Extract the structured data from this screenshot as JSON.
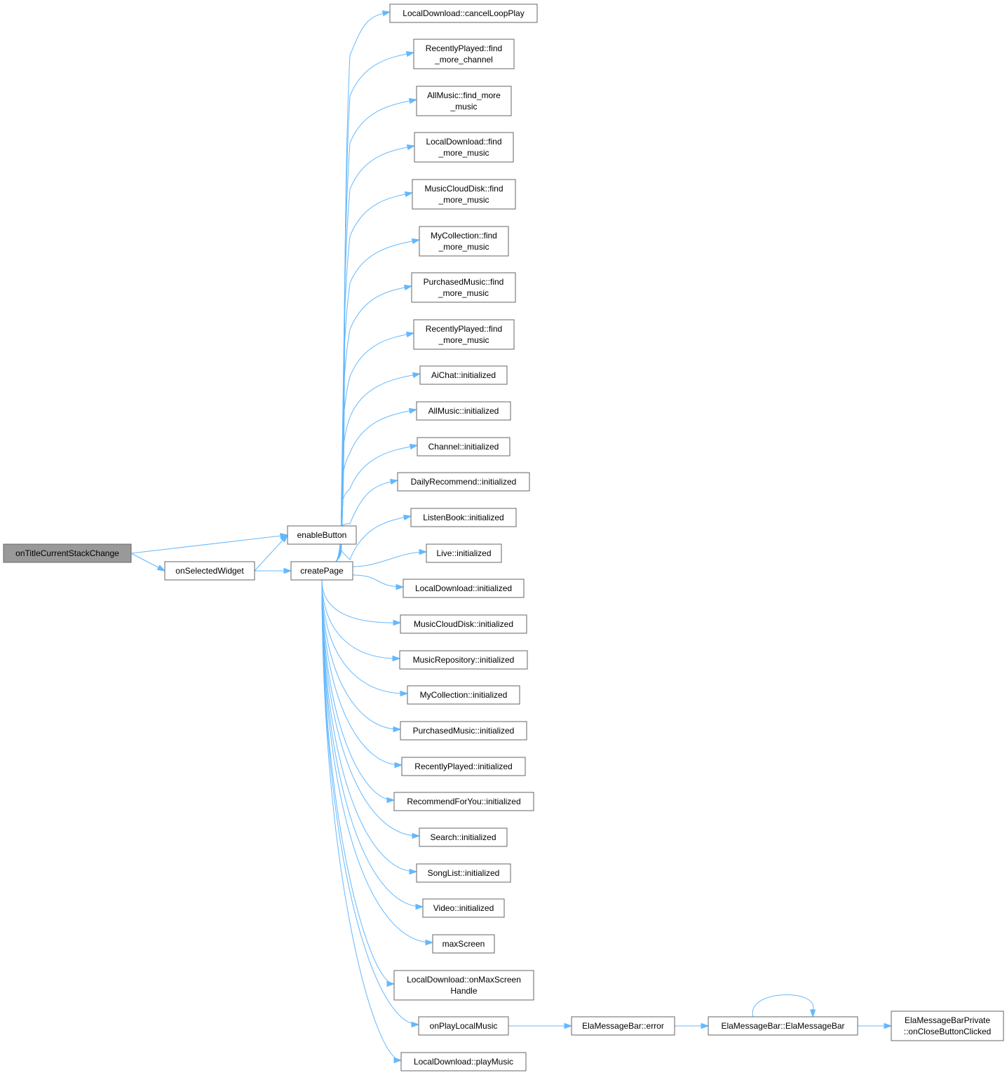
{
  "graph": {
    "nodes": [
      {
        "id": "onTitleCurrentStackChange",
        "lines": [
          "onTitleCurrentStackChange"
        ],
        "root": true
      },
      {
        "id": "enableButton",
        "lines": [
          "enableButton"
        ]
      },
      {
        "id": "onSelectedWidget",
        "lines": [
          "onSelectedWidget"
        ]
      },
      {
        "id": "createPage",
        "lines": [
          "createPage"
        ]
      },
      {
        "id": "LD_cancelLoopPlay",
        "lines": [
          "LocalDownload::cancelLoopPlay"
        ]
      },
      {
        "id": "RP_find_more_channel",
        "lines": [
          "RecentlyPlayed::find",
          "_more_channel"
        ]
      },
      {
        "id": "AM_find_more_music",
        "lines": [
          "AllMusic::find_more",
          "_music"
        ]
      },
      {
        "id": "LD_find_more_music",
        "lines": [
          "LocalDownload::find",
          "_more_music"
        ]
      },
      {
        "id": "MCD_find_more_music",
        "lines": [
          "MusicCloudDisk::find",
          "_more_music"
        ]
      },
      {
        "id": "MC_find_more_music",
        "lines": [
          "MyCollection::find",
          "_more_music"
        ]
      },
      {
        "id": "PM_find_more_music",
        "lines": [
          "PurchasedMusic::find",
          "_more_music"
        ]
      },
      {
        "id": "RP_find_more_music",
        "lines": [
          "RecentlyPlayed::find",
          "_more_music"
        ]
      },
      {
        "id": "AiChat_init",
        "lines": [
          "AiChat::initialized"
        ]
      },
      {
        "id": "AllMusic_init",
        "lines": [
          "AllMusic::initialized"
        ]
      },
      {
        "id": "Channel_init",
        "lines": [
          "Channel::initialized"
        ]
      },
      {
        "id": "DailyRecommend_init",
        "lines": [
          "DailyRecommend::initialized"
        ]
      },
      {
        "id": "ListenBook_init",
        "lines": [
          "ListenBook::initialized"
        ]
      },
      {
        "id": "Live_init",
        "lines": [
          "Live::initialized"
        ]
      },
      {
        "id": "LocalDownload_init",
        "lines": [
          "LocalDownload::initialized"
        ]
      },
      {
        "id": "MusicCloudDisk_init",
        "lines": [
          "MusicCloudDisk::initialized"
        ]
      },
      {
        "id": "MusicRepository_init",
        "lines": [
          "MusicRepository::initialized"
        ]
      },
      {
        "id": "MyCollection_init",
        "lines": [
          "MyCollection::initialized"
        ]
      },
      {
        "id": "PurchasedMusic_init",
        "lines": [
          "PurchasedMusic::initialized"
        ]
      },
      {
        "id": "RecentlyPlayed_init",
        "lines": [
          "RecentlyPlayed::initialized"
        ]
      },
      {
        "id": "RecommendForYou_init",
        "lines": [
          "RecommendForYou::initialized"
        ]
      },
      {
        "id": "Search_init",
        "lines": [
          "Search::initialized"
        ]
      },
      {
        "id": "SongList_init",
        "lines": [
          "SongList::initialized"
        ]
      },
      {
        "id": "Video_init",
        "lines": [
          "Video::initialized"
        ]
      },
      {
        "id": "maxScreen",
        "lines": [
          "maxScreen"
        ]
      },
      {
        "id": "LD_onMaxScreenHandle",
        "lines": [
          "LocalDownload::onMaxScreen",
          "Handle"
        ]
      },
      {
        "id": "onPlayLocalMusic",
        "lines": [
          "onPlayLocalMusic"
        ]
      },
      {
        "id": "LD_playMusic",
        "lines": [
          "LocalDownload::playMusic"
        ]
      },
      {
        "id": "EMB_error",
        "lines": [
          "ElaMessageBar::error"
        ]
      },
      {
        "id": "EMB_ctor",
        "lines": [
          "ElaMessageBar::ElaMessageBar"
        ]
      },
      {
        "id": "EMBP_onClose",
        "lines": [
          "ElaMessageBarPrivate",
          "::onCloseButtonClicked"
        ]
      }
    ],
    "edges": [
      [
        "onTitleCurrentStackChange",
        "enableButton"
      ],
      [
        "onTitleCurrentStackChange",
        "onSelectedWidget"
      ],
      [
        "onSelectedWidget",
        "enableButton"
      ],
      [
        "onSelectedWidget",
        "createPage"
      ],
      [
        "createPage",
        "LD_cancelLoopPlay"
      ],
      [
        "createPage",
        "RP_find_more_channel"
      ],
      [
        "createPage",
        "AM_find_more_music"
      ],
      [
        "createPage",
        "LD_find_more_music"
      ],
      [
        "createPage",
        "MCD_find_more_music"
      ],
      [
        "createPage",
        "MC_find_more_music"
      ],
      [
        "createPage",
        "PM_find_more_music"
      ],
      [
        "createPage",
        "RP_find_more_music"
      ],
      [
        "createPage",
        "AiChat_init"
      ],
      [
        "createPage",
        "AllMusic_init"
      ],
      [
        "createPage",
        "Channel_init"
      ],
      [
        "createPage",
        "DailyRecommend_init"
      ],
      [
        "createPage",
        "ListenBook_init"
      ],
      [
        "createPage",
        "Live_init"
      ],
      [
        "createPage",
        "LocalDownload_init"
      ],
      [
        "createPage",
        "MusicCloudDisk_init"
      ],
      [
        "createPage",
        "MusicRepository_init"
      ],
      [
        "createPage",
        "MyCollection_init"
      ],
      [
        "createPage",
        "PurchasedMusic_init"
      ],
      [
        "createPage",
        "RecentlyPlayed_init"
      ],
      [
        "createPage",
        "RecommendForYou_init"
      ],
      [
        "createPage",
        "Search_init"
      ],
      [
        "createPage",
        "SongList_init"
      ],
      [
        "createPage",
        "Video_init"
      ],
      [
        "createPage",
        "maxScreen"
      ],
      [
        "createPage",
        "LD_onMaxScreenHandle"
      ],
      [
        "createPage",
        "onPlayLocalMusic"
      ],
      [
        "createPage",
        "LD_playMusic"
      ],
      [
        "onPlayLocalMusic",
        "EMB_error"
      ],
      [
        "EMB_error",
        "EMB_ctor"
      ],
      [
        "EMB_ctor",
        "EMB_ctor"
      ],
      [
        "EMB_ctor",
        "EMBP_onClose"
      ]
    ]
  },
  "colors": {
    "edge": "#63b8ff",
    "node_border": "#666666",
    "root_fill": "#999999",
    "node_fill": "#ffffff"
  }
}
